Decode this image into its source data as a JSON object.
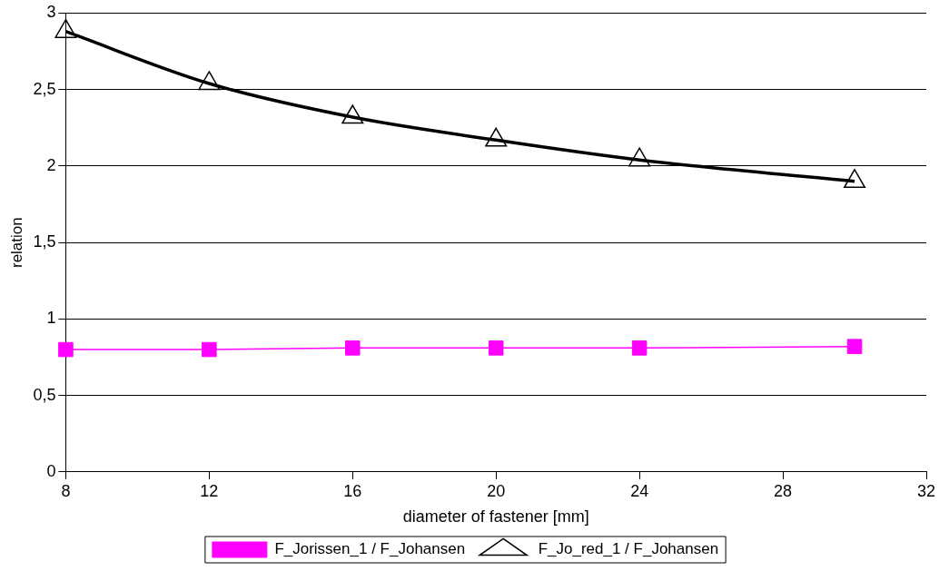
{
  "chart_data": {
    "type": "line",
    "xlabel": "diameter of fastener [mm]",
    "ylabel": "relation",
    "x": [
      8,
      12,
      16,
      20,
      24,
      30
    ],
    "series": [
      {
        "name": "F_Jorissen_1 / F_Johansen",
        "color": "#ff00ff",
        "marker": "square",
        "values": [
          0.8,
          0.8,
          0.81,
          0.81,
          0.81,
          0.82
        ]
      },
      {
        "name": "F_Jo_red_1 / F_Johansen",
        "color": "#000000",
        "marker": "triangle",
        "values": [
          2.88,
          2.54,
          2.32,
          2.17,
          2.04,
          1.9
        ]
      }
    ],
    "xlim": [
      8,
      32
    ],
    "xticks": [
      8,
      12,
      16,
      20,
      24,
      28,
      32
    ],
    "ylim": [
      0,
      3
    ],
    "yticks": [
      0,
      {
        "value": 0.5,
        "label": "0,5"
      },
      1,
      {
        "value": 1.5,
        "label": "1,5"
      },
      2,
      {
        "value": 2.5,
        "label": "2,5"
      },
      3
    ],
    "grid": "y",
    "legend": "bottom",
    "line_style": "solid"
  }
}
